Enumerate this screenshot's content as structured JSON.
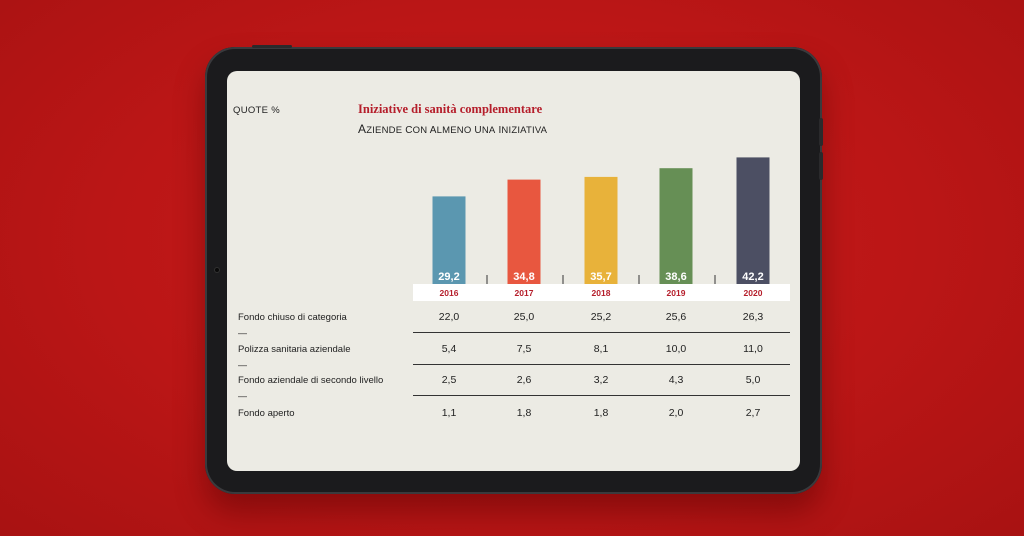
{
  "header": {
    "quote_label": "QUOTE %",
    "title": "Iniziative di sanità complementare",
    "subtitle": "Aziende con almeno una iniziativa"
  },
  "colors": {
    "background": "#bf1a1a",
    "title": "#b51e2b",
    "bars": [
      "#5b97b0",
      "#e8573f",
      "#e8b23a",
      "#668f55",
      "#4c4f63"
    ]
  },
  "chart_data": {
    "type": "bar",
    "title": "Iniziative di sanità complementare",
    "subtitle": "Aziende con almeno una iniziativa",
    "ylabel": "QUOTE %",
    "categories": [
      "2016",
      "2017",
      "2018",
      "2019",
      "2020"
    ],
    "values": [
      29.2,
      34.8,
      35.7,
      38.6,
      42.2
    ],
    "value_labels": [
      "29,2",
      "34,8",
      "35,7",
      "38,6",
      "42,2"
    ],
    "grid": false,
    "legend": "none"
  },
  "table": {
    "rows": [
      {
        "label": "Fondo chiuso di categoria",
        "values": [
          "22,0",
          "25,0",
          "25,2",
          "25,6",
          "26,3"
        ]
      },
      {
        "label": "Polizza sanitaria aziendale",
        "values": [
          "5,4",
          "7,5",
          "8,1",
          "10,0",
          "11,0"
        ]
      },
      {
        "label": "Fondo aziendale di secondo livello",
        "values": [
          "2,5",
          "2,6",
          "3,2",
          "4,3",
          "5,0"
        ]
      },
      {
        "label": "Fondo aperto",
        "values": [
          "1,1",
          "1,8",
          "1,8",
          "2,0",
          "2,7"
        ]
      }
    ],
    "separator": "—"
  }
}
